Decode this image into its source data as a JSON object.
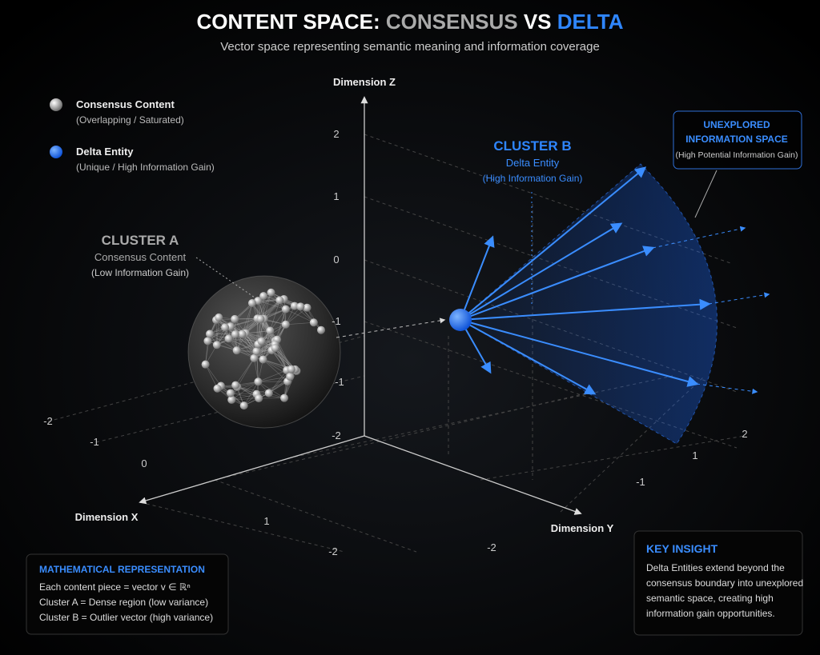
{
  "header": {
    "title_parts": [
      "CONTENT SPACE:",
      "CONSENSUS",
      "VS",
      "DELTA"
    ],
    "subtitle": "Vector space representing semantic meaning and information coverage"
  },
  "legend": [
    {
      "label": "Consensus Content",
      "note": "(Overlapping / Saturated)"
    },
    {
      "label": "Delta Entity",
      "note": "(Unique / High Information Gain)"
    }
  ],
  "axes": {
    "z": {
      "label": "Dimension Z",
      "ticks": [
        "2",
        "1",
        "0",
        "-1",
        "-1",
        "-2"
      ]
    },
    "x": {
      "label": "Dimension X",
      "ticks": [
        "-2",
        "-1",
        "0",
        "1",
        "-2"
      ]
    },
    "y": {
      "label": "Dimension Y",
      "ticks": [
        "-2",
        "-1",
        "1",
        "2"
      ]
    }
  },
  "cluster_a": {
    "title": "CLUSTER A",
    "line1": "Consensus Content",
    "line2": "(Low Information Gain)"
  },
  "cluster_b": {
    "title": "CLUSTER B",
    "line1": "Delta Entity",
    "line2": "(High Information Gain)"
  },
  "unexplored": {
    "lines": [
      "UNEXPLORED",
      "INFORMATION SPACE"
    ],
    "note": "(High Potential Information Gain)"
  },
  "math_box": {
    "title": "MATHEMATICAL REPRESENTATION",
    "lines": [
      "Each content piece = vector v ∈ ℝⁿ",
      "Cluster A = Dense region (low variance)",
      "Cluster B = Outlier vector (high variance)"
    ]
  },
  "insight": {
    "title": "KEY INSIGHT",
    "lines": [
      "Delta Entities extend beyond the",
      "consensus boundary into unexplored",
      "semantic space, creating high",
      "information gain opportunities."
    ]
  }
}
